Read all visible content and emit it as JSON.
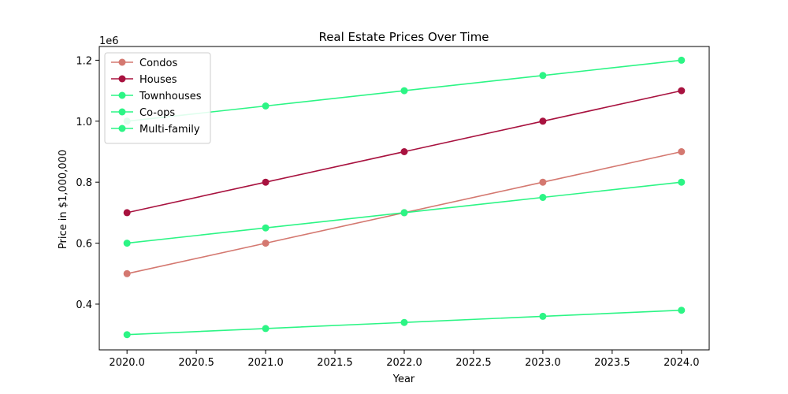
{
  "chart_data": {
    "type": "line",
    "title": "Real Estate Prices Over Time",
    "xlabel": "Year",
    "ylabel": "Price in $1,000,000",
    "y_offset_label": "1e6",
    "x": [
      2020,
      2021,
      2022,
      2023,
      2024
    ],
    "xlim": [
      2019.8,
      2024.2
    ],
    "ylim": [
      250000,
      1245000
    ],
    "x_ticks": [
      2020.0,
      2020.5,
      2021.0,
      2021.5,
      2022.0,
      2022.5,
      2023.0,
      2023.5,
      2024.0
    ],
    "x_tick_labels": [
      "2020.0",
      "2020.5",
      "2021.0",
      "2021.5",
      "2022.0",
      "2022.5",
      "2023.0",
      "2023.5",
      "2024.0"
    ],
    "y_ticks": [
      400000,
      600000,
      800000,
      1000000,
      1200000
    ],
    "y_tick_labels": [
      "0.4",
      "0.6",
      "0.8",
      "1.0",
      "1.2"
    ],
    "grid": false,
    "legend_position": "top-left",
    "series": [
      {
        "name": "Condos",
        "color": "#d47870",
        "values": [
          500000,
          600000,
          700000,
          800000,
          900000
        ]
      },
      {
        "name": "Houses",
        "color": "#a8123f",
        "values": [
          700000,
          800000,
          900000,
          1000000,
          1100000
        ]
      },
      {
        "name": "Townhouses",
        "color": "#2cf585",
        "values": [
          1000000,
          1050000,
          1100000,
          1150000,
          1200000
        ]
      },
      {
        "name": "Co-ops",
        "color": "#2cf585",
        "values": [
          600000,
          650000,
          700000,
          750000,
          800000
        ]
      },
      {
        "name": "Multi-family",
        "color": "#2cf585",
        "values": [
          300000,
          320000,
          340000,
          360000,
          380000
        ]
      }
    ]
  }
}
